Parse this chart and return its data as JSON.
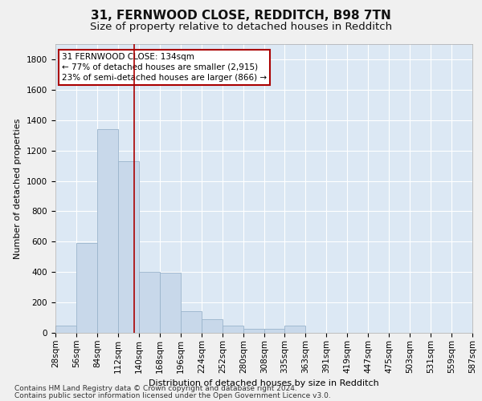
{
  "title1": "31, FERNWOOD CLOSE, REDDITCH, B98 7TN",
  "title2": "Size of property relative to detached houses in Redditch",
  "xlabel": "Distribution of detached houses by size in Redditch",
  "ylabel": "Number of detached properties",
  "footer1": "Contains HM Land Registry data © Crown copyright and database right 2024.",
  "footer2": "Contains public sector information licensed under the Open Government Licence v3.0.",
  "annotation_line1": "31 FERNWOOD CLOSE: 134sqm",
  "annotation_line2": "← 77% of detached houses are smaller (2,915)",
  "annotation_line3": "23% of semi-detached houses are larger (866) →",
  "property_size": 134,
  "bar_color": "#c8d8ea",
  "bar_edge_color": "#9ab4cc",
  "red_line_color": "#aa0000",
  "background_color": "#dce8f4",
  "annotation_box_color": "#ffffff",
  "annotation_box_edge": "#aa0000",
  "bin_edges": [
    28,
    56,
    84,
    112,
    140,
    168,
    196,
    224,
    252,
    280,
    308,
    335,
    363,
    391,
    419,
    447,
    475,
    503,
    531,
    559,
    587
  ],
  "bar_heights": [
    45,
    590,
    1340,
    1130,
    400,
    395,
    145,
    90,
    50,
    25,
    25,
    45,
    0,
    0,
    0,
    0,
    0,
    0,
    0,
    0
  ],
  "ylim": [
    0,
    1900
  ],
  "yticks": [
    0,
    200,
    400,
    600,
    800,
    1000,
    1200,
    1400,
    1600,
    1800
  ],
  "grid_color": "#ffffff",
  "title1_fontsize": 11,
  "title2_fontsize": 9.5,
  "axis_label_fontsize": 8,
  "tick_fontsize": 7.5,
  "footer_fontsize": 6.5,
  "annot_fontsize": 7.5
}
